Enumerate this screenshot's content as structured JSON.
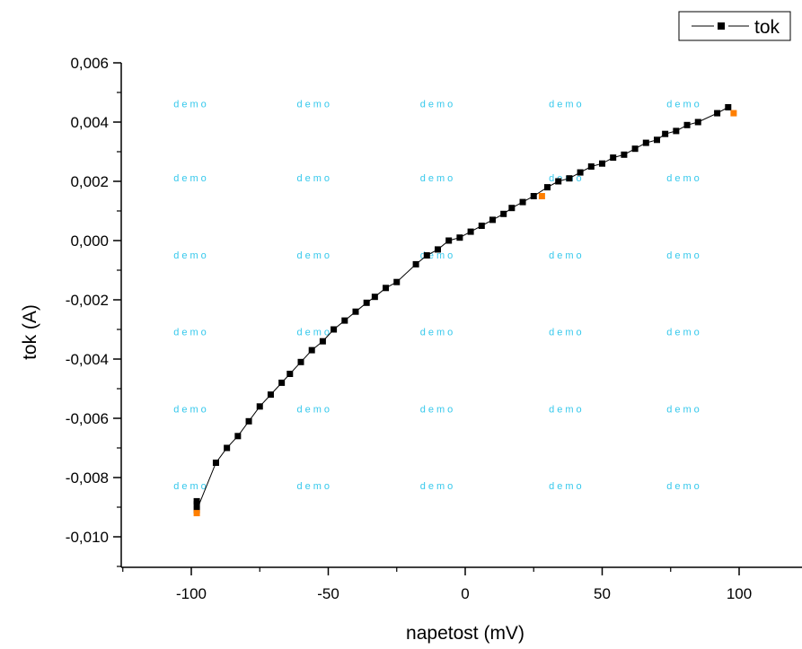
{
  "chart_data": {
    "type": "line",
    "title": "",
    "xlabel": "napetost (mV)",
    "ylabel": "tok (A)",
    "xlim": [
      -125,
      125
    ],
    "ylim": [
      -0.011,
      0.006
    ],
    "x_ticks": [
      -100,
      -50,
      0,
      50,
      100
    ],
    "x_tick_labels": [
      "-100",
      "-50",
      "0",
      "50",
      "100"
    ],
    "y_ticks": [
      -0.01,
      -0.008,
      -0.006,
      -0.004,
      -0.002,
      0.0,
      0.002,
      0.004,
      0.006
    ],
    "y_tick_labels": [
      "-0,010",
      "-0,008",
      "-0,006",
      "-0,004",
      "-0,002",
      "0,000",
      "0,002",
      "0,004",
      "0,006"
    ],
    "grid": false,
    "legend_position": "top-right",
    "series": [
      {
        "name": "tok",
        "color": "#000000",
        "marker": "square",
        "x": [
          -98,
          -98,
          -98,
          -91,
          -87,
          -83,
          -79,
          -75,
          -71,
          -67,
          -64,
          -60,
          -56,
          -52,
          -48,
          -44,
          -40,
          -36,
          -33,
          -29,
          -25,
          -18,
          -14,
          -10,
          -6,
          -2,
          2,
          6,
          10,
          14,
          17,
          21,
          25,
          30,
          34,
          38,
          42,
          46,
          50,
          54,
          58,
          62,
          66,
          70,
          73,
          77,
          81,
          85,
          92,
          96
        ],
        "y": [
          -0.0088,
          -0.0089,
          -0.0091,
          -0.0075,
          -0.007,
          -0.0066,
          -0.0061,
          -0.0056,
          -0.0052,
          -0.0048,
          -0.0045,
          -0.0041,
          -0.0037,
          -0.0034,
          -0.003,
          -0.0027,
          -0.0024,
          -0.0021,
          -0.0019,
          -0.0016,
          -0.0014,
          -0.0008,
          -0.0005,
          -0.0003,
          0.0,
          0.0001,
          0.0003,
          0.0005,
          0.0007,
          0.0009,
          0.0011,
          0.0013,
          0.0015,
          0.0018,
          0.002,
          0.0021,
          0.0023,
          0.0025,
          0.0026,
          0.0028,
          0.0029,
          0.0031,
          0.0033,
          0.0034,
          0.0036,
          0.0037,
          0.0039,
          0.004,
          0.0043,
          0.0045
        ]
      }
    ],
    "highlight_points": {
      "color": "#ff7f00",
      "x": [
        -98,
        28,
        98
      ],
      "y": [
        -0.0092,
        0.0015,
        0.0043
      ]
    },
    "watermark": {
      "text": "demo",
      "color": "#35c8ec",
      "columns": [
        -100,
        -55,
        -10,
        37,
        80
      ],
      "rows": [
        0.0045,
        0.002,
        -0.0006,
        -0.0032,
        -0.0058,
        -0.0084
      ]
    }
  }
}
